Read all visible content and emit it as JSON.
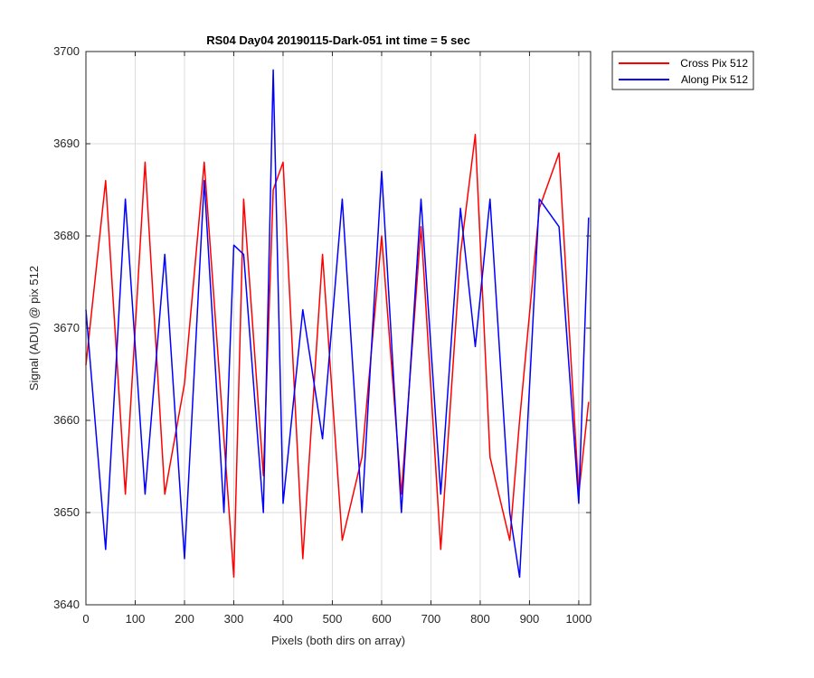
{
  "chart_data": {
    "type": "line",
    "title": "RS04 Day04 20190115-Dark-051 int time = 5 sec",
    "xlabel": "Pixels (both dirs on array)",
    "ylabel": "Signal (ADU) @ pix 512",
    "xlim": [
      0,
      1024
    ],
    "ylim": [
      3640,
      3700
    ],
    "x_ticks": [
      0,
      100,
      200,
      300,
      400,
      500,
      600,
      700,
      800,
      900,
      1000
    ],
    "y_ticks": [
      3640,
      3650,
      3660,
      3670,
      3680,
      3690,
      3700
    ],
    "grid": true,
    "legend_location": "outside-top-right",
    "x": [
      0,
      40,
      80,
      120,
      160,
      200,
      240,
      280,
      300,
      320,
      360,
      380,
      400,
      440,
      480,
      520,
      560,
      600,
      640,
      680,
      720,
      760,
      790,
      820,
      860,
      880,
      920,
      960,
      1000,
      1020
    ],
    "series": [
      {
        "name": "Cross Pix 512",
        "color": "#ff0000",
        "values": [
          3666,
          3686,
          3652,
          3688,
          3652,
          3664,
          3688,
          3658,
          3643,
          3684,
          3654,
          3685,
          3688,
          3645,
          3678,
          3647,
          3656,
          3680,
          3652,
          3681,
          3646,
          3678,
          3691,
          3656,
          3647,
          3660,
          3683,
          3689,
          3652,
          3662
        ]
      },
      {
        "name": "Along Pix 512",
        "color": "#0000ff",
        "values": [
          3672,
          3646,
          3684,
          3652,
          3678,
          3645,
          3686,
          3650,
          3679,
          3678,
          3650,
          3698,
          3651,
          3672,
          3658,
          3684,
          3650,
          3687,
          3650,
          3684,
          3652,
          3683,
          3668,
          3684,
          3650,
          3643,
          3684,
          3681,
          3651,
          3682
        ]
      }
    ]
  }
}
